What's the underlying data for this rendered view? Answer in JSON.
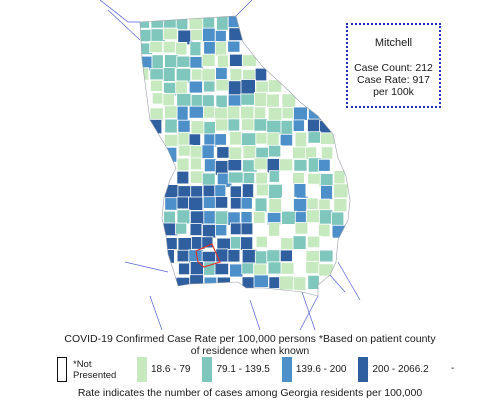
{
  "map": {
    "region": "Georgia",
    "colors": {
      "class1": "#c7e9c0",
      "class2": "#7fc6bd",
      "class3": "#4c8fc9",
      "class4": "#2f5f9e",
      "not_presented": "#ffffff",
      "border": "#ffffff",
      "highlight": "#e0302b",
      "water_lines": "#5560d8"
    }
  },
  "tooltip": {
    "county": "Mitchell",
    "case_count": "Case Count: 212",
    "case_rate": "Case Rate: 917 per 100k"
  },
  "caption": "COVID-19 Confirmed Case Rate per 100,000 persons *Based on patient county of residence when known",
  "legend": {
    "not_presented": "*Not Presented",
    "items": [
      {
        "label": "18.6 - 79",
        "color": "#c7e9c0"
      },
      {
        "label": "79.1 - 139.5",
        "color": "#7fc6bd"
      },
      {
        "label": "139.6 - 200",
        "color": "#4c8fc9"
      },
      {
        "label": "200 - 2066.2",
        "color": "#2f5f9e"
      }
    ],
    "trailing": "-"
  },
  "footnote": "Rate indicates the number of cases among Georgia residents per 100,000"
}
